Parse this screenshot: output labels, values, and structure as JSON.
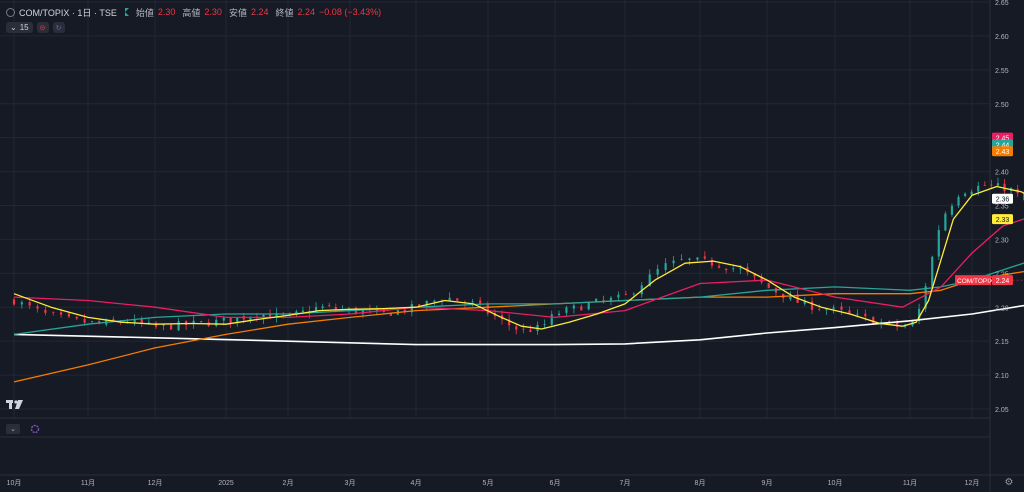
{
  "header": {
    "symbol": "COM/TOPIX · 1日 · TSE",
    "open_label": "始値",
    "open_value": "2.30",
    "high_label": "高値",
    "high_value": "2.30",
    "low_label": "安値",
    "low_value": "2.24",
    "close_label": "終値",
    "close_value": "2.24",
    "change": "−0.08 (−3.43%)",
    "indicator_count": "15"
  },
  "price_badges": [
    {
      "text": "2.45",
      "color": "#e91e63"
    },
    {
      "text": "2.44",
      "color": "#26a69a"
    },
    {
      "text": "2.43",
      "color": "#f57c00"
    },
    {
      "text": "2.36",
      "color": "#ffffff"
    },
    {
      "text": "2.33",
      "color": "#ffeb3b"
    }
  ],
  "last_label": "COM/TOPIX",
  "last_value": "2.24",
  "chart_data": {
    "type": "line",
    "title": "COM/TOPIX · 1日 · TSE",
    "ylim": [
      2.05,
      2.65
    ],
    "yticks": [
      "2.05",
      "2.10",
      "2.15",
      "2.20",
      "2.25",
      "2.30",
      "2.35",
      "2.40",
      "2.45",
      "2.50",
      "2.55",
      "2.60",
      "2.65"
    ],
    "xticks": [
      "10月",
      "11月",
      "12月",
      "2025",
      "2月",
      "3月",
      "4月",
      "5月",
      "6月",
      "7月",
      "8月",
      "9月",
      "10月",
      "11月",
      "12月"
    ],
    "grid": true,
    "colors": {
      "up": "#26a69a",
      "down": "#f23645",
      "ma_fast": "#ffeb3b",
      "ma_mid": "#e91e63",
      "ma_slow": "#26a69a",
      "ma_long": "#f57c00",
      "ma_longest": "#ffffff"
    },
    "price_path": [
      [
        0,
        2.21
      ],
      [
        0.4,
        2.19
      ],
      [
        0.8,
        2.18
      ],
      [
        1.2,
        2.175
      ],
      [
        1.6,
        2.18
      ],
      [
        2,
        2.17
      ],
      [
        2.5,
        2.175
      ],
      [
        3,
        2.18
      ],
      [
        3.5,
        2.19
      ],
      [
        4,
        2.185
      ],
      [
        4.5,
        2.2
      ],
      [
        5,
        2.195
      ],
      [
        5.5,
        2.19
      ],
      [
        6,
        2.2
      ],
      [
        6.4,
        2.215
      ],
      [
        6.8,
        2.205
      ],
      [
        7.2,
        2.18
      ],
      [
        7.5,
        2.165
      ],
      [
        7.8,
        2.17
      ],
      [
        8,
        2.19
      ],
      [
        8.5,
        2.205
      ],
      [
        9,
        2.215
      ],
      [
        9.5,
        2.26
      ],
      [
        9.8,
        2.27
      ],
      [
        10.2,
        2.265
      ],
      [
        10.6,
        2.255
      ],
      [
        11,
        2.23
      ],
      [
        11.5,
        2.205
      ],
      [
        12,
        2.195
      ],
      [
        12.5,
        2.18
      ],
      [
        12.9,
        2.17
      ],
      [
        13.1,
        2.18
      ],
      [
        13.3,
        2.25
      ],
      [
        13.5,
        2.33
      ],
      [
        13.8,
        2.37
      ],
      [
        14.2,
        2.38
      ],
      [
        14.6,
        2.375
      ],
      [
        15,
        2.345
      ],
      [
        15.3,
        2.32
      ],
      [
        15.7,
        2.34
      ],
      [
        16.2,
        2.335
      ],
      [
        16.6,
        2.31
      ],
      [
        17,
        2.32
      ],
      [
        17.4,
        2.3
      ],
      [
        17.8,
        2.31
      ],
      [
        18.2,
        2.33
      ],
      [
        18.6,
        2.345
      ],
      [
        19,
        2.38
      ],
      [
        19.5,
        2.395
      ],
      [
        20,
        2.4
      ],
      [
        20.4,
        2.41
      ],
      [
        20.8,
        2.395
      ],
      [
        21.1,
        2.375
      ],
      [
        21.4,
        2.37
      ],
      [
        21.7,
        2.355
      ],
      [
        22,
        2.35
      ],
      [
        22.4,
        2.375
      ],
      [
        22.8,
        2.4
      ],
      [
        23.1,
        2.45
      ],
      [
        23.4,
        2.46
      ],
      [
        23.7,
        2.42
      ],
      [
        24,
        2.41
      ],
      [
        24.4,
        2.4
      ],
      [
        24.8,
        2.38
      ],
      [
        25.2,
        2.37
      ],
      [
        25.6,
        2.41
      ],
      [
        26,
        2.44
      ],
      [
        26.4,
        2.43
      ],
      [
        26.8,
        2.42
      ],
      [
        27.2,
        2.42
      ],
      [
        27.6,
        2.44
      ],
      [
        28,
        2.45
      ],
      [
        28.3,
        2.49
      ],
      [
        28.6,
        2.51
      ],
      [
        28.9,
        2.54
      ],
      [
        29.2,
        2.565
      ],
      [
        29.5,
        2.555
      ],
      [
        29.8,
        2.51
      ],
      [
        30,
        2.46
      ],
      [
        30.3,
        2.41
      ],
      [
        30.6,
        2.37
      ],
      [
        30.9,
        2.35
      ],
      [
        31.2,
        2.355
      ],
      [
        31.5,
        2.335
      ],
      [
        31.8,
        2.24
      ]
    ],
    "series": [
      {
        "name": "ma_fast",
        "values": [
          [
            0,
            2.22
          ],
          [
            0.5,
            2.2
          ],
          [
            1,
            2.185
          ],
          [
            1.5,
            2.178
          ],
          [
            2,
            2.175
          ],
          [
            2.5,
            2.176
          ],
          [
            3,
            2.175
          ],
          [
            3.5,
            2.182
          ],
          [
            4,
            2.188
          ],
          [
            4.5,
            2.195
          ],
          [
            5,
            2.197
          ],
          [
            5.5,
            2.198
          ],
          [
            6,
            2.2
          ],
          [
            6.4,
            2.21
          ],
          [
            6.8,
            2.205
          ],
          [
            7.2,
            2.185
          ],
          [
            7.5,
            2.172
          ],
          [
            7.8,
            2.168
          ],
          [
            8.2,
            2.178
          ],
          [
            8.6,
            2.19
          ],
          [
            9,
            2.205
          ],
          [
            9.4,
            2.24
          ],
          [
            9.8,
            2.265
          ],
          [
            10.2,
            2.268
          ],
          [
            10.6,
            2.26
          ],
          [
            11,
            2.24
          ],
          [
            11.4,
            2.215
          ],
          [
            11.8,
            2.2
          ],
          [
            12.2,
            2.19
          ],
          [
            12.6,
            2.176
          ],
          [
            12.9,
            2.172
          ],
          [
            13.1,
            2.178
          ],
          [
            13.3,
            2.21
          ],
          [
            13.5,
            2.27
          ],
          [
            13.7,
            2.33
          ],
          [
            14,
            2.365
          ],
          [
            14.4,
            2.378
          ],
          [
            14.8,
            2.37
          ],
          [
            15.2,
            2.35
          ],
          [
            15.5,
            2.33
          ],
          [
            15.8,
            2.325
          ],
          [
            16.2,
            2.33
          ],
          [
            16.6,
            2.325
          ],
          [
            17,
            2.315
          ],
          [
            17.4,
            2.305
          ],
          [
            17.8,
            2.308
          ],
          [
            18.2,
            2.32
          ],
          [
            18.6,
            2.34
          ],
          [
            19,
            2.37
          ],
          [
            19.5,
            2.39
          ],
          [
            20,
            2.4
          ],
          [
            20.4,
            2.405
          ],
          [
            20.8,
            2.395
          ],
          [
            21.2,
            2.38
          ],
          [
            21.6,
            2.365
          ],
          [
            22,
            2.355
          ],
          [
            22.4,
            2.37
          ],
          [
            22.8,
            2.395
          ],
          [
            23.2,
            2.44
          ],
          [
            23.5,
            2.455
          ],
          [
            23.8,
            2.43
          ],
          [
            24.2,
            2.41
          ],
          [
            24.6,
            2.395
          ],
          [
            25,
            2.38
          ],
          [
            25.4,
            2.39
          ],
          [
            25.8,
            2.425
          ],
          [
            26.2,
            2.435
          ],
          [
            26.6,
            2.425
          ],
          [
            27,
            2.42
          ],
          [
            27.4,
            2.43
          ],
          [
            27.8,
            2.445
          ],
          [
            28.2,
            2.475
          ],
          [
            28.6,
            2.5
          ],
          [
            28.9,
            2.525
          ],
          [
            29.2,
            2.55
          ],
          [
            29.5,
            2.555
          ],
          [
            29.8,
            2.52
          ],
          [
            30.1,
            2.46
          ],
          [
            30.4,
            2.41
          ],
          [
            30.7,
            2.38
          ],
          [
            31,
            2.355
          ],
          [
            31.3,
            2.352
          ],
          [
            31.6,
            2.345
          ],
          [
            31.8,
            2.33
          ]
        ]
      },
      {
        "name": "ma_mid",
        "values": [
          [
            0,
            2.215
          ],
          [
            1,
            2.21
          ],
          [
            2,
            2.2
          ],
          [
            3,
            2.185
          ],
          [
            4,
            2.185
          ],
          [
            5,
            2.19
          ],
          [
            6,
            2.2
          ],
          [
            7,
            2.195
          ],
          [
            8,
            2.185
          ],
          [
            9,
            2.195
          ],
          [
            10,
            2.235
          ],
          [
            11,
            2.24
          ],
          [
            12,
            2.215
          ],
          [
            12.9,
            2.2
          ],
          [
            13.5,
            2.23
          ],
          [
            14,
            2.28
          ],
          [
            14.5,
            2.32
          ],
          [
            15,
            2.335
          ],
          [
            16,
            2.33
          ],
          [
            17,
            2.32
          ],
          [
            18,
            2.315
          ],
          [
            19,
            2.33
          ],
          [
            20,
            2.36
          ],
          [
            21,
            2.38
          ],
          [
            22,
            2.37
          ],
          [
            23,
            2.385
          ],
          [
            24,
            2.41
          ],
          [
            25,
            2.4
          ],
          [
            26,
            2.41
          ],
          [
            27,
            2.425
          ],
          [
            28,
            2.44
          ],
          [
            29,
            2.47
          ],
          [
            29.8,
            2.49
          ],
          [
            30.5,
            2.48
          ],
          [
            31.2,
            2.465
          ],
          [
            31.8,
            2.45
          ]
        ]
      },
      {
        "name": "ma_slow",
        "values": [
          [
            0,
            2.16
          ],
          [
            1,
            2.175
          ],
          [
            2,
            2.185
          ],
          [
            3,
            2.19
          ],
          [
            4,
            2.19
          ],
          [
            5,
            2.195
          ],
          [
            6,
            2.2
          ],
          [
            7,
            2.205
          ],
          [
            8,
            2.205
          ],
          [
            9,
            2.21
          ],
          [
            10,
            2.215
          ],
          [
            11,
            2.225
          ],
          [
            12,
            2.23
          ],
          [
            13,
            2.225
          ],
          [
            13.5,
            2.23
          ],
          [
            14,
            2.24
          ],
          [
            15,
            2.27
          ],
          [
            16,
            2.29
          ],
          [
            17,
            2.3
          ],
          [
            18,
            2.31
          ],
          [
            19,
            2.315
          ],
          [
            20,
            2.33
          ],
          [
            21,
            2.345
          ],
          [
            22,
            2.36
          ],
          [
            23,
            2.375
          ],
          [
            24,
            2.385
          ],
          [
            25,
            2.39
          ],
          [
            26,
            2.4
          ],
          [
            27,
            2.41
          ],
          [
            28,
            2.42
          ],
          [
            29,
            2.435
          ],
          [
            30,
            2.445
          ],
          [
            31,
            2.445
          ],
          [
            31.8,
            2.44
          ]
        ]
      },
      {
        "name": "ma_long",
        "values": [
          [
            0,
            2.09
          ],
          [
            1,
            2.115
          ],
          [
            2,
            2.14
          ],
          [
            3,
            2.16
          ],
          [
            4,
            2.175
          ],
          [
            5,
            2.185
          ],
          [
            6,
            2.195
          ],
          [
            7,
            2.2
          ],
          [
            8,
            2.205
          ],
          [
            9,
            2.21
          ],
          [
            10,
            2.215
          ],
          [
            11,
            2.215
          ],
          [
            12,
            2.22
          ],
          [
            13,
            2.22
          ],
          [
            13.5,
            2.225
          ],
          [
            14,
            2.24
          ],
          [
            15,
            2.255
          ],
          [
            16,
            2.265
          ],
          [
            17,
            2.28
          ],
          [
            18,
            2.29
          ],
          [
            19,
            2.305
          ],
          [
            20,
            2.315
          ],
          [
            21,
            2.325
          ],
          [
            22,
            2.34
          ],
          [
            23,
            2.35
          ],
          [
            24,
            2.36
          ],
          [
            25,
            2.37
          ],
          [
            26,
            2.38
          ],
          [
            27,
            2.39
          ],
          [
            28,
            2.4
          ],
          [
            29,
            2.415
          ],
          [
            30,
            2.43
          ],
          [
            31,
            2.432
          ],
          [
            31.8,
            2.43
          ]
        ]
      },
      {
        "name": "ma_longest",
        "values": [
          [
            0,
            2.16
          ],
          [
            2,
            2.155
          ],
          [
            4,
            2.15
          ],
          [
            6,
            2.145
          ],
          [
            8,
            2.145
          ],
          [
            9,
            2.146
          ],
          [
            10,
            2.152
          ],
          [
            11,
            2.162
          ],
          [
            12,
            2.17
          ],
          [
            13,
            2.18
          ],
          [
            14,
            2.19
          ],
          [
            15,
            2.205
          ],
          [
            16,
            2.215
          ],
          [
            17,
            2.225
          ],
          [
            18,
            2.235
          ],
          [
            19,
            2.242
          ],
          [
            20,
            2.25
          ],
          [
            21,
            2.258
          ],
          [
            22,
            2.265
          ],
          [
            23,
            2.275
          ],
          [
            24,
            2.285
          ],
          [
            25,
            2.295
          ],
          [
            26,
            2.305
          ],
          [
            27,
            2.315
          ],
          [
            28,
            2.325
          ],
          [
            29,
            2.335
          ],
          [
            30,
            2.35
          ],
          [
            31,
            2.355
          ],
          [
            31.8,
            2.355
          ]
        ]
      }
    ]
  }
}
